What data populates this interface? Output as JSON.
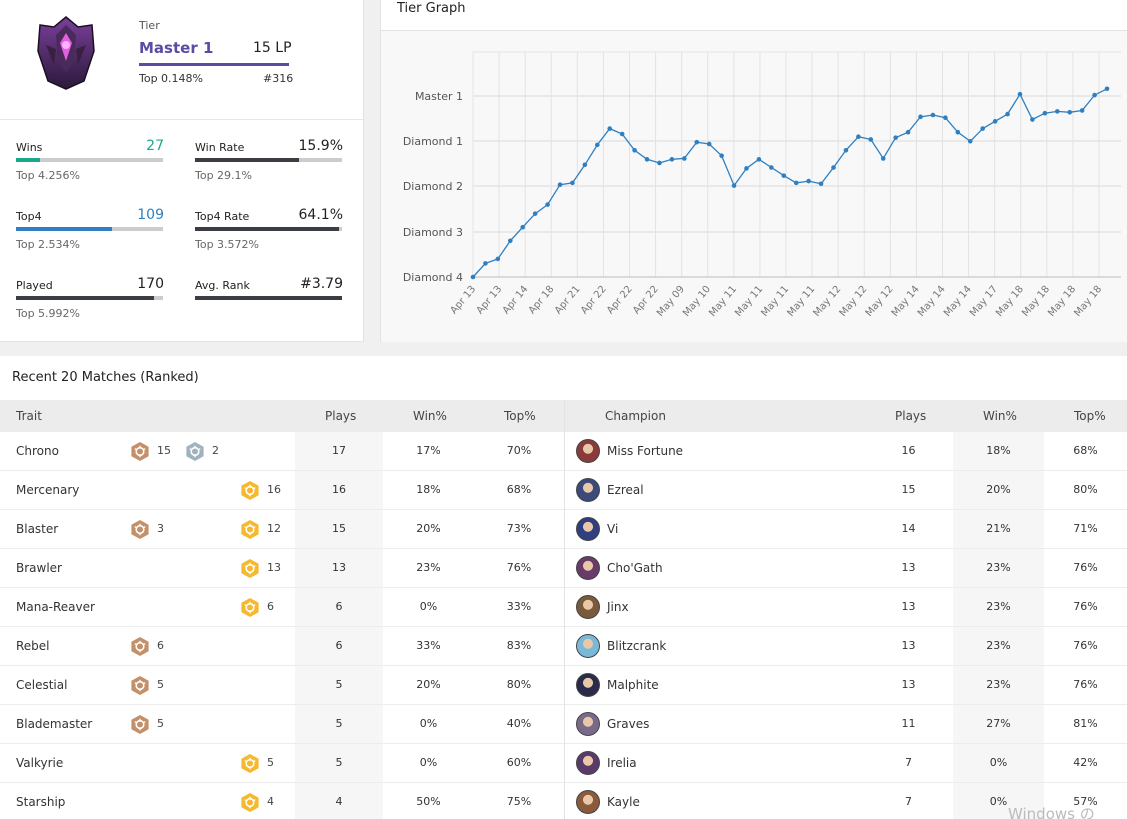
{
  "tier": {
    "label": "Tier",
    "name": "Master 1",
    "lp": "15 LP",
    "top": "Top 0.148%",
    "rank": "#316",
    "color": "#5b4ba5"
  },
  "stats": [
    {
      "name": "Wins",
      "value": "27",
      "top": "Top 4.256%",
      "fill": 0.16,
      "color": "#1aa88a",
      "value_color": "#1aa88a"
    },
    {
      "name": "Win Rate",
      "value": "15.9%",
      "top": "Top 29.1%",
      "fill": 0.71,
      "color": "#3b3d45",
      "value_color": "#222222"
    },
    {
      "name": "Top4",
      "value": "109",
      "top": "Top 2.534%",
      "fill": 0.65,
      "color": "#2f7fc1",
      "value_color": "#2f7fc1"
    },
    {
      "name": "Top4 Rate",
      "value": "64.1%",
      "top": "Top 3.572%",
      "fill": 0.98,
      "color": "#3b3d45",
      "value_color": "#222222"
    },
    {
      "name": "Played",
      "value": "170",
      "top": "Top 5.992%",
      "fill": 0.94,
      "color": "#3b3d45",
      "value_color": "#222222"
    },
    {
      "name": "Avg. Rank",
      "value": "#3.79",
      "top": "",
      "fill": 1.0,
      "color": "#3b3d45",
      "value_color": "#222222"
    }
  ],
  "graph": {
    "title": "Tier Graph",
    "y_labels": [
      "Master 1",
      "Diamond 1",
      "Diamond 2",
      "Diamond 3",
      "Diamond 4"
    ],
    "x_labels": [
      "Apr 13",
      "Apr 13",
      "Apr 14",
      "Apr 18",
      "Apr 21",
      "Apr 22",
      "Apr 22",
      "Apr 22",
      "May 09",
      "May 10",
      "May 11",
      "May 11",
      "May 11",
      "May 11",
      "May 12",
      "May 12",
      "May 12",
      "May 14",
      "May 14",
      "May 14",
      "May 17",
      "May 18",
      "May 18",
      "May 18",
      "May 18"
    ],
    "line_color": "#2f7fc1",
    "points": [
      0.0,
      0.15,
      0.2,
      0.4,
      0.55,
      0.7,
      0.8,
      1.02,
      1.04,
      1.24,
      1.46,
      1.64,
      1.58,
      1.4,
      1.3,
      1.26,
      1.3,
      1.31,
      1.49,
      1.47,
      1.34,
      1.01,
      1.2,
      1.3,
      1.21,
      1.12,
      1.04,
      1.06,
      1.03,
      1.21,
      1.4,
      1.55,
      1.52,
      1.31,
      1.54,
      1.6,
      1.77,
      1.79,
      1.76,
      1.6,
      1.5,
      1.64,
      1.72,
      1.8,
      2.02,
      1.74,
      1.81,
      1.83,
      1.82,
      1.84,
      2.01,
      2.08
    ]
  },
  "matches": {
    "title": "Recent 20 Matches (Ranked)",
    "trait_header": {
      "trait": "Trait",
      "plays": "Plays",
      "win": "Win%",
      "top": "Top%"
    },
    "champ_header": {
      "champion": "Champion",
      "plays": "Plays",
      "win": "Win%",
      "top": "Top%"
    },
    "traits": [
      {
        "name": "Chrono",
        "plays": "17",
        "win": "17%",
        "top": "70%",
        "badges": [
          {
            "tier": "bronze",
            "count": "15",
            "slot": 0
          },
          {
            "tier": "silver",
            "count": "2",
            "slot": 1
          }
        ]
      },
      {
        "name": "Mercenary",
        "plays": "16",
        "win": "18%",
        "top": "68%",
        "badges": [
          {
            "tier": "gold",
            "count": "16",
            "slot": 2
          }
        ]
      },
      {
        "name": "Blaster",
        "plays": "15",
        "win": "20%",
        "top": "73%",
        "badges": [
          {
            "tier": "bronze",
            "count": "3",
            "slot": 0
          },
          {
            "tier": "gold",
            "count": "12",
            "slot": 2
          }
        ]
      },
      {
        "name": "Brawler",
        "plays": "13",
        "win": "23%",
        "top": "76%",
        "badges": [
          {
            "tier": "gold",
            "count": "13",
            "slot": 2
          }
        ]
      },
      {
        "name": "Mana-Reaver",
        "plays": "6",
        "win": "0%",
        "top": "33%",
        "badges": [
          {
            "tier": "gold",
            "count": "6",
            "slot": 2
          }
        ]
      },
      {
        "name": "Rebel",
        "plays": "6",
        "win": "33%",
        "top": "83%",
        "badges": [
          {
            "tier": "bronze",
            "count": "6",
            "slot": 0
          }
        ]
      },
      {
        "name": "Celestial",
        "plays": "5",
        "win": "20%",
        "top": "80%",
        "badges": [
          {
            "tier": "bronze",
            "count": "5",
            "slot": 0
          }
        ]
      },
      {
        "name": "Blademaster",
        "plays": "5",
        "win": "0%",
        "top": "40%",
        "badges": [
          {
            "tier": "bronze",
            "count": "5",
            "slot": 0
          }
        ]
      },
      {
        "name": "Valkyrie",
        "plays": "5",
        "win": "0%",
        "top": "60%",
        "badges": [
          {
            "tier": "gold",
            "count": "5",
            "slot": 2
          }
        ]
      },
      {
        "name": "Starship",
        "plays": "4",
        "win": "50%",
        "top": "75%",
        "badges": [
          {
            "tier": "gold",
            "count": "4",
            "slot": 2
          }
        ]
      }
    ],
    "champions": [
      {
        "name": "Miss Fortune",
        "plays": "16",
        "win": "18%",
        "top": "68%",
        "color": "#8a3a3a"
      },
      {
        "name": "Ezreal",
        "plays": "15",
        "win": "20%",
        "top": "80%",
        "color": "#3a4a7a"
      },
      {
        "name": "Vi",
        "plays": "14",
        "win": "21%",
        "top": "71%",
        "color": "#2f3f7f"
      },
      {
        "name": "Cho'Gath",
        "plays": "13",
        "win": "23%",
        "top": "76%",
        "color": "#6a3a6a"
      },
      {
        "name": "Jinx",
        "plays": "13",
        "win": "23%",
        "top": "76%",
        "color": "#7a5a3a"
      },
      {
        "name": "Blitzcrank",
        "plays": "13",
        "win": "23%",
        "top": "76%",
        "color": "#7ab8d8"
      },
      {
        "name": "Malphite",
        "plays": "13",
        "win": "23%",
        "top": "76%",
        "color": "#2a2a4a"
      },
      {
        "name": "Graves",
        "plays": "11",
        "win": "27%",
        "top": "81%",
        "color": "#7a6a8a"
      },
      {
        "name": "Irelia",
        "plays": "7",
        "win": "0%",
        "top": "42%",
        "color": "#5a3a6a"
      },
      {
        "name": "Kayle",
        "plays": "7",
        "win": "0%",
        "top": "57%",
        "color": "#8a5a3a"
      }
    ],
    "badge_colors": {
      "bronze": "#c4906a",
      "silver": "#9fb3bf",
      "gold": "#f5b82e"
    }
  },
  "watermark": "Windows の"
}
